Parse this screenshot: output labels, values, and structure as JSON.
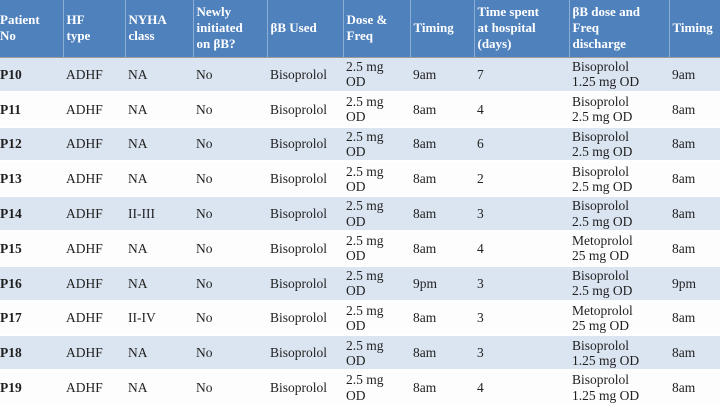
{
  "colors": {
    "header_bg": "#4f81bd",
    "band_row_bg": "#dbe5f1",
    "header_text": "#ffffff",
    "body_text": "#1f1f1f"
  },
  "table": {
    "columns": [
      {
        "key": "patient_no",
        "label": "Patient\nNo"
      },
      {
        "key": "hf_type",
        "label": "HF\ntype"
      },
      {
        "key": "nyha_class",
        "label": "NYHA\nclass"
      },
      {
        "key": "newly_initiated",
        "label": "Newly\ninitiated\non βB?"
      },
      {
        "key": "bb_used",
        "label": "βB Used"
      },
      {
        "key": "dose_freq",
        "label": "Dose &\nFreq"
      },
      {
        "key": "timing",
        "label": "Timing"
      },
      {
        "key": "time_spent",
        "label": "Time spent\nat hospital\n(days)"
      },
      {
        "key": "bb_dose_discharge",
        "label": "βB dose and\nFreq\ndischarge"
      },
      {
        "key": "timing_discharge",
        "label": "Timing"
      }
    ],
    "rows": [
      {
        "cells": [
          "P10",
          "ADHF",
          "NA",
          "No",
          "Bisoprolol",
          "2.5 mg\nOD",
          "9am",
          "7",
          "Bisoprolol\n1.25 mg OD",
          "9am"
        ]
      },
      {
        "cells": [
          "P11",
          "ADHF",
          "NA",
          "No",
          "Bisoprolol",
          "2.5 mg\nOD",
          "8am",
          "4",
          "Bisoprolol\n2.5 mg OD",
          "8am"
        ]
      },
      {
        "cells": [
          "P12",
          "ADHF",
          "NA",
          "No",
          "Bisoprolol",
          "2.5 mg\nOD",
          "8am",
          "6",
          "Bisoprolol\n2.5 mg OD",
          "8am"
        ]
      },
      {
        "cells": [
          "P13",
          "ADHF",
          "NA",
          "No",
          "Bisoprolol",
          "2.5 mg\nOD",
          "8am",
          "2",
          "Bisoprolol\n2.5 mg OD",
          "8am"
        ]
      },
      {
        "cells": [
          "P14",
          "ADHF",
          "II-III",
          "No",
          "Bisoprolol",
          "2.5 mg\nOD",
          "8am",
          "3",
          "Bisoprolol\n2.5 mg OD",
          "8am"
        ]
      },
      {
        "cells": [
          "P15",
          "ADHF",
          "NA",
          "No",
          "Bisoprolol",
          "2.5 mg\nOD",
          "8am",
          "4",
          "Metoprolol\n25 mg OD",
          "8am"
        ]
      },
      {
        "cells": [
          "P16",
          "ADHF",
          "NA",
          "No",
          "Bisoprolol",
          "2.5 mg\nOD",
          "9pm",
          "3",
          "Bisoprolol\n2.5 mg OD",
          "9pm"
        ]
      },
      {
        "cells": [
          "P17",
          "ADHF",
          "II-IV",
          "No",
          "Bisoprolol",
          "2.5 mg\nOD",
          "8am",
          "3",
          "Metoprolol\n25 mg OD",
          "8am"
        ]
      },
      {
        "cells": [
          "P18",
          "ADHF",
          "NA",
          "No",
          "Bisoprolol",
          "2.5 mg\nOD",
          "8am",
          "3",
          "Bisoprolol\n1.25 mg OD",
          "8am"
        ]
      },
      {
        "cells": [
          "P19",
          "ADHF",
          "NA",
          "No",
          "Bisoprolol",
          "2.5 mg\nOD",
          "8am",
          "4",
          "Bisoprolol\n1.25 mg OD",
          "8am"
        ]
      }
    ]
  }
}
